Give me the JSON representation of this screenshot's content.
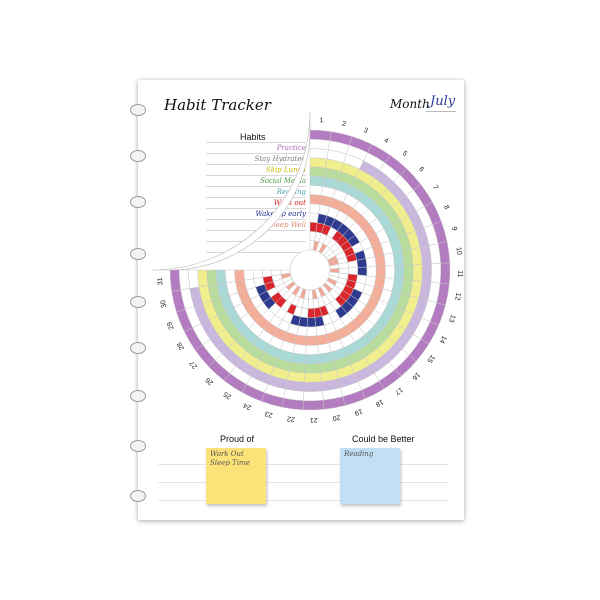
{
  "header": {
    "title": "Habit Tracker",
    "month_label": "Month",
    "month_value": "July"
  },
  "habits_header": "Habits",
  "habits": [
    {
      "name": "Practice",
      "color": "#b06ab8"
    },
    {
      "name": "Stay Hydrated",
      "color": "#7c7c7c"
    },
    {
      "name": "Skip Lunch",
      "color": "#c8b400"
    },
    {
      "name": "Social Media",
      "color": "#4f9a4a"
    },
    {
      "name": "Reading",
      "color": "#4aa6b0"
    },
    {
      "name": "Work out",
      "color": "#d11a1a"
    },
    {
      "name": "Wake up early",
      "color": "#1e2e8a"
    },
    {
      "name": "Sleep Well",
      "color": "#d98a6a"
    }
  ],
  "tracker": {
    "days": [
      "1",
      "2",
      "3",
      "4",
      "5",
      "6",
      "7",
      "8",
      "9",
      "10",
      "11",
      "12",
      "13",
      "14",
      "15",
      "16",
      "17",
      "18",
      "19",
      "20",
      "21",
      "22",
      "23",
      "24",
      "25",
      "26",
      "27",
      "28",
      "29",
      "30",
      "31"
    ],
    "ring_colors": [
      "#b47cc0",
      "#ffffff",
      "#c9b7de",
      "#f1ee8e",
      "#b8dc9c",
      "#a8d9d6",
      "#ffffff",
      "#f4ad98",
      "#ffffff",
      "#2e3a8f",
      "#d9252b",
      "#ffffff",
      "#f2a897"
    ],
    "marks": {
      "2": [
        [
          4,
          1
        ],
        [
          5,
          1
        ],
        [
          6,
          1
        ],
        [
          7,
          1
        ],
        [
          8,
          1
        ],
        [
          9,
          1
        ],
        [
          10,
          1
        ],
        [
          11,
          1
        ],
        [
          12,
          1
        ],
        [
          13,
          1
        ],
        [
          14,
          1
        ],
        [
          15,
          1
        ],
        [
          16,
          1
        ],
        [
          17,
          1
        ],
        [
          18,
          1
        ],
        [
          19,
          1
        ],
        [
          20,
          1
        ],
        [
          21,
          1
        ],
        [
          22,
          1
        ],
        [
          23,
          1
        ],
        [
          24,
          1
        ],
        [
          25,
          1
        ],
        [
          26,
          1
        ],
        [
          27,
          1
        ],
        [
          28,
          1
        ],
        [
          29,
          1
        ],
        [
          30,
          1
        ]
      ],
      "9": [
        [
          2,
          1
        ],
        [
          3,
          1
        ],
        [
          4,
          1
        ],
        [
          5,
          1
        ],
        [
          6,
          1
        ],
        [
          7,
          1
        ],
        [
          9,
          1
        ],
        [
          10,
          1
        ],
        [
          11,
          1
        ],
        [
          14,
          1
        ],
        [
          15,
          1
        ],
        [
          16,
          1
        ],
        [
          17,
          1
        ],
        [
          20,
          1
        ],
        [
          21,
          1
        ],
        [
          22,
          1
        ],
        [
          23,
          1
        ],
        [
          27,
          1
        ],
        [
          28,
          1
        ],
        [
          29,
          1
        ]
      ],
      "10": [
        [
          1,
          1
        ],
        [
          2,
          1
        ],
        [
          3,
          1
        ],
        [
          5,
          1
        ],
        [
          6,
          1
        ],
        [
          7,
          1
        ],
        [
          8,
          1
        ],
        [
          9,
          1
        ],
        [
          12,
          1
        ],
        [
          13,
          1
        ],
        [
          14,
          1
        ],
        [
          15,
          1
        ],
        [
          16,
          1
        ],
        [
          19,
          1
        ],
        [
          20,
          1
        ],
        [
          21,
          1
        ],
        [
          24,
          1
        ],
        [
          26,
          1
        ],
        [
          27,
          1
        ],
        [
          29,
          1
        ],
        [
          30,
          1
        ]
      ],
      "12": [
        [
          2,
          1
        ],
        [
          4,
          1
        ],
        [
          8,
          1
        ],
        [
          9,
          1
        ],
        [
          11,
          1
        ],
        [
          14,
          1
        ],
        [
          16,
          1
        ],
        [
          18,
          1
        ],
        [
          20,
          1
        ],
        [
          23,
          1
        ],
        [
          25,
          1
        ],
        [
          27,
          1
        ],
        [
          30,
          1
        ]
      ]
    }
  },
  "notes": [
    {
      "heading": "Proud of",
      "lines": [
        "Work Out",
        "Sleep Time"
      ],
      "color": "#fbe37a"
    },
    {
      "heading": "Could be Better",
      "lines": [
        "Reading"
      ],
      "color": "#c1e0f5"
    }
  ]
}
